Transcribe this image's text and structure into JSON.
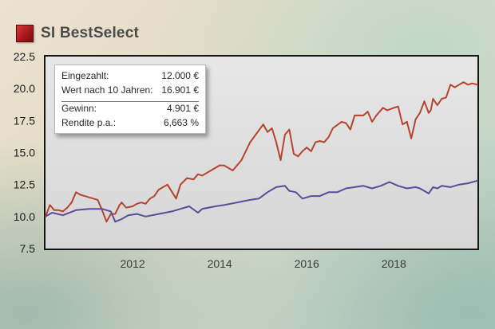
{
  "header": {
    "title": "SI BestSelect"
  },
  "info_box": {
    "rows": [
      {
        "label": "Eingezahlt:",
        "value": "12.000 €"
      },
      {
        "label": "Wert nach 10 Jahren:",
        "value": "16.901 €"
      },
      {
        "label": "Gewinn:",
        "value": "4.901 €"
      },
      {
        "label": "Rendite p.a.:",
        "value": "6,663 %"
      }
    ]
  },
  "colors": {
    "series_fund": "#b5432e",
    "series_deposit": "#5a4c96",
    "plot_bg": "#e0e0e0",
    "brand_red": "#b01c20"
  },
  "chart_data": {
    "type": "line",
    "title": "",
    "xlabel": "",
    "ylabel": "",
    "xlim": [
      2010.0,
      2019.92
    ],
    "ylim": [
      7.5,
      22.5
    ],
    "y_ticks": [
      "7.5",
      "10.0",
      "12.5",
      "15.0",
      "17.5",
      "20.0",
      "22.5"
    ],
    "x_ticks": [
      "2012",
      "2014",
      "2016",
      "2018"
    ],
    "grid": false,
    "legend": "none",
    "series": [
      {
        "x": [
          2010.0,
          2010.1,
          2010.2,
          2010.3,
          2010.4,
          2010.5,
          2010.6,
          2010.7,
          2010.8,
          2010.9,
          2011.0,
          2011.1,
          2011.2,
          2011.3,
          2011.4,
          2011.5,
          2011.6,
          2011.7,
          2011.75,
          2011.85,
          2012.0,
          2012.1,
          2012.2,
          2012.3,
          2012.4,
          2012.5,
          2012.6,
          2012.8,
          2013.0,
          2013.1,
          2013.25,
          2013.4,
          2013.5,
          2013.6,
          2013.8,
          2014.0,
          2014.1,
          2014.3,
          2014.5,
          2014.7,
          2014.85,
          2015.0,
          2015.1,
          2015.2,
          2015.3,
          2015.4,
          2015.5,
          2015.6,
          2015.7,
          2015.8,
          2015.9,
          2016.0,
          2016.1,
          2016.2,
          2016.3,
          2016.4,
          2016.5,
          2016.6,
          2016.8,
          2016.9,
          2017.0,
          2017.1,
          2017.3,
          2017.4,
          2017.5,
          2017.6,
          2017.75,
          2017.85,
          2018.0,
          2018.1,
          2018.2,
          2018.3,
          2018.4,
          2018.5,
          2018.6,
          2018.7,
          2018.8,
          2018.85,
          2018.9,
          2019.0,
          2019.1,
          2019.2,
          2019.3,
          2019.4,
          2019.5,
          2019.6,
          2019.7,
          2019.8,
          2019.92
        ],
        "y": [
          10.0,
          10.9,
          10.5,
          10.5,
          10.4,
          10.7,
          11.1,
          11.9,
          11.7,
          11.6,
          11.5,
          11.4,
          11.3,
          10.5,
          9.6,
          10.2,
          10.2,
          10.9,
          11.1,
          10.7,
          10.8,
          11.0,
          11.1,
          11.0,
          11.4,
          11.6,
          12.1,
          12.5,
          11.4,
          12.5,
          13.0,
          12.9,
          13.3,
          13.2,
          13.6,
          14.0,
          14.0,
          13.6,
          14.4,
          15.8,
          16.5,
          17.2,
          16.6,
          16.9,
          15.8,
          14.4,
          16.4,
          16.8,
          14.9,
          14.7,
          15.1,
          15.4,
          15.1,
          15.8,
          15.9,
          15.8,
          16.2,
          16.9,
          17.4,
          17.3,
          16.8,
          17.9,
          17.9,
          18.2,
          17.4,
          17.9,
          18.5,
          18.3,
          18.5,
          18.6,
          17.2,
          17.4,
          16.1,
          17.6,
          18.1,
          19.0,
          18.1,
          18.3,
          19.2,
          18.7,
          19.2,
          19.3,
          20.3,
          20.1,
          20.3,
          20.5,
          20.3,
          20.4,
          20.3
        ],
        "color": "#b5432e"
      },
      {
        "x": [
          2010.0,
          2010.15,
          2010.4,
          2010.7,
          2011.0,
          2011.3,
          2011.5,
          2011.6,
          2011.75,
          2011.9,
          2012.1,
          2012.3,
          2012.6,
          2012.9,
          2013.1,
          2013.3,
          2013.5,
          2013.6,
          2013.9,
          2014.1,
          2014.4,
          2014.7,
          2014.9,
          2015.1,
          2015.3,
          2015.5,
          2015.6,
          2015.75,
          2015.9,
          2016.1,
          2016.3,
          2016.5,
          2016.7,
          2016.9,
          2017.1,
          2017.3,
          2017.5,
          2017.7,
          2017.9,
          2018.1,
          2018.3,
          2018.5,
          2018.6,
          2018.8,
          2018.9,
          2019.0,
          2019.1,
          2019.3,
          2019.5,
          2019.7,
          2019.92
        ],
        "y": [
          10.0,
          10.3,
          10.1,
          10.5,
          10.6,
          10.6,
          10.4,
          9.6,
          9.8,
          10.1,
          10.2,
          10.0,
          10.2,
          10.4,
          10.6,
          10.8,
          10.3,
          10.6,
          10.8,
          10.9,
          11.1,
          11.3,
          11.4,
          11.9,
          12.3,
          12.4,
          12.0,
          11.9,
          11.4,
          11.6,
          11.6,
          11.9,
          11.9,
          12.2,
          12.3,
          12.4,
          12.2,
          12.4,
          12.7,
          12.4,
          12.2,
          12.3,
          12.2,
          11.8,
          12.3,
          12.2,
          12.4,
          12.3,
          12.5,
          12.6,
          12.8
        ],
        "color": "#5a4c96"
      }
    ]
  }
}
